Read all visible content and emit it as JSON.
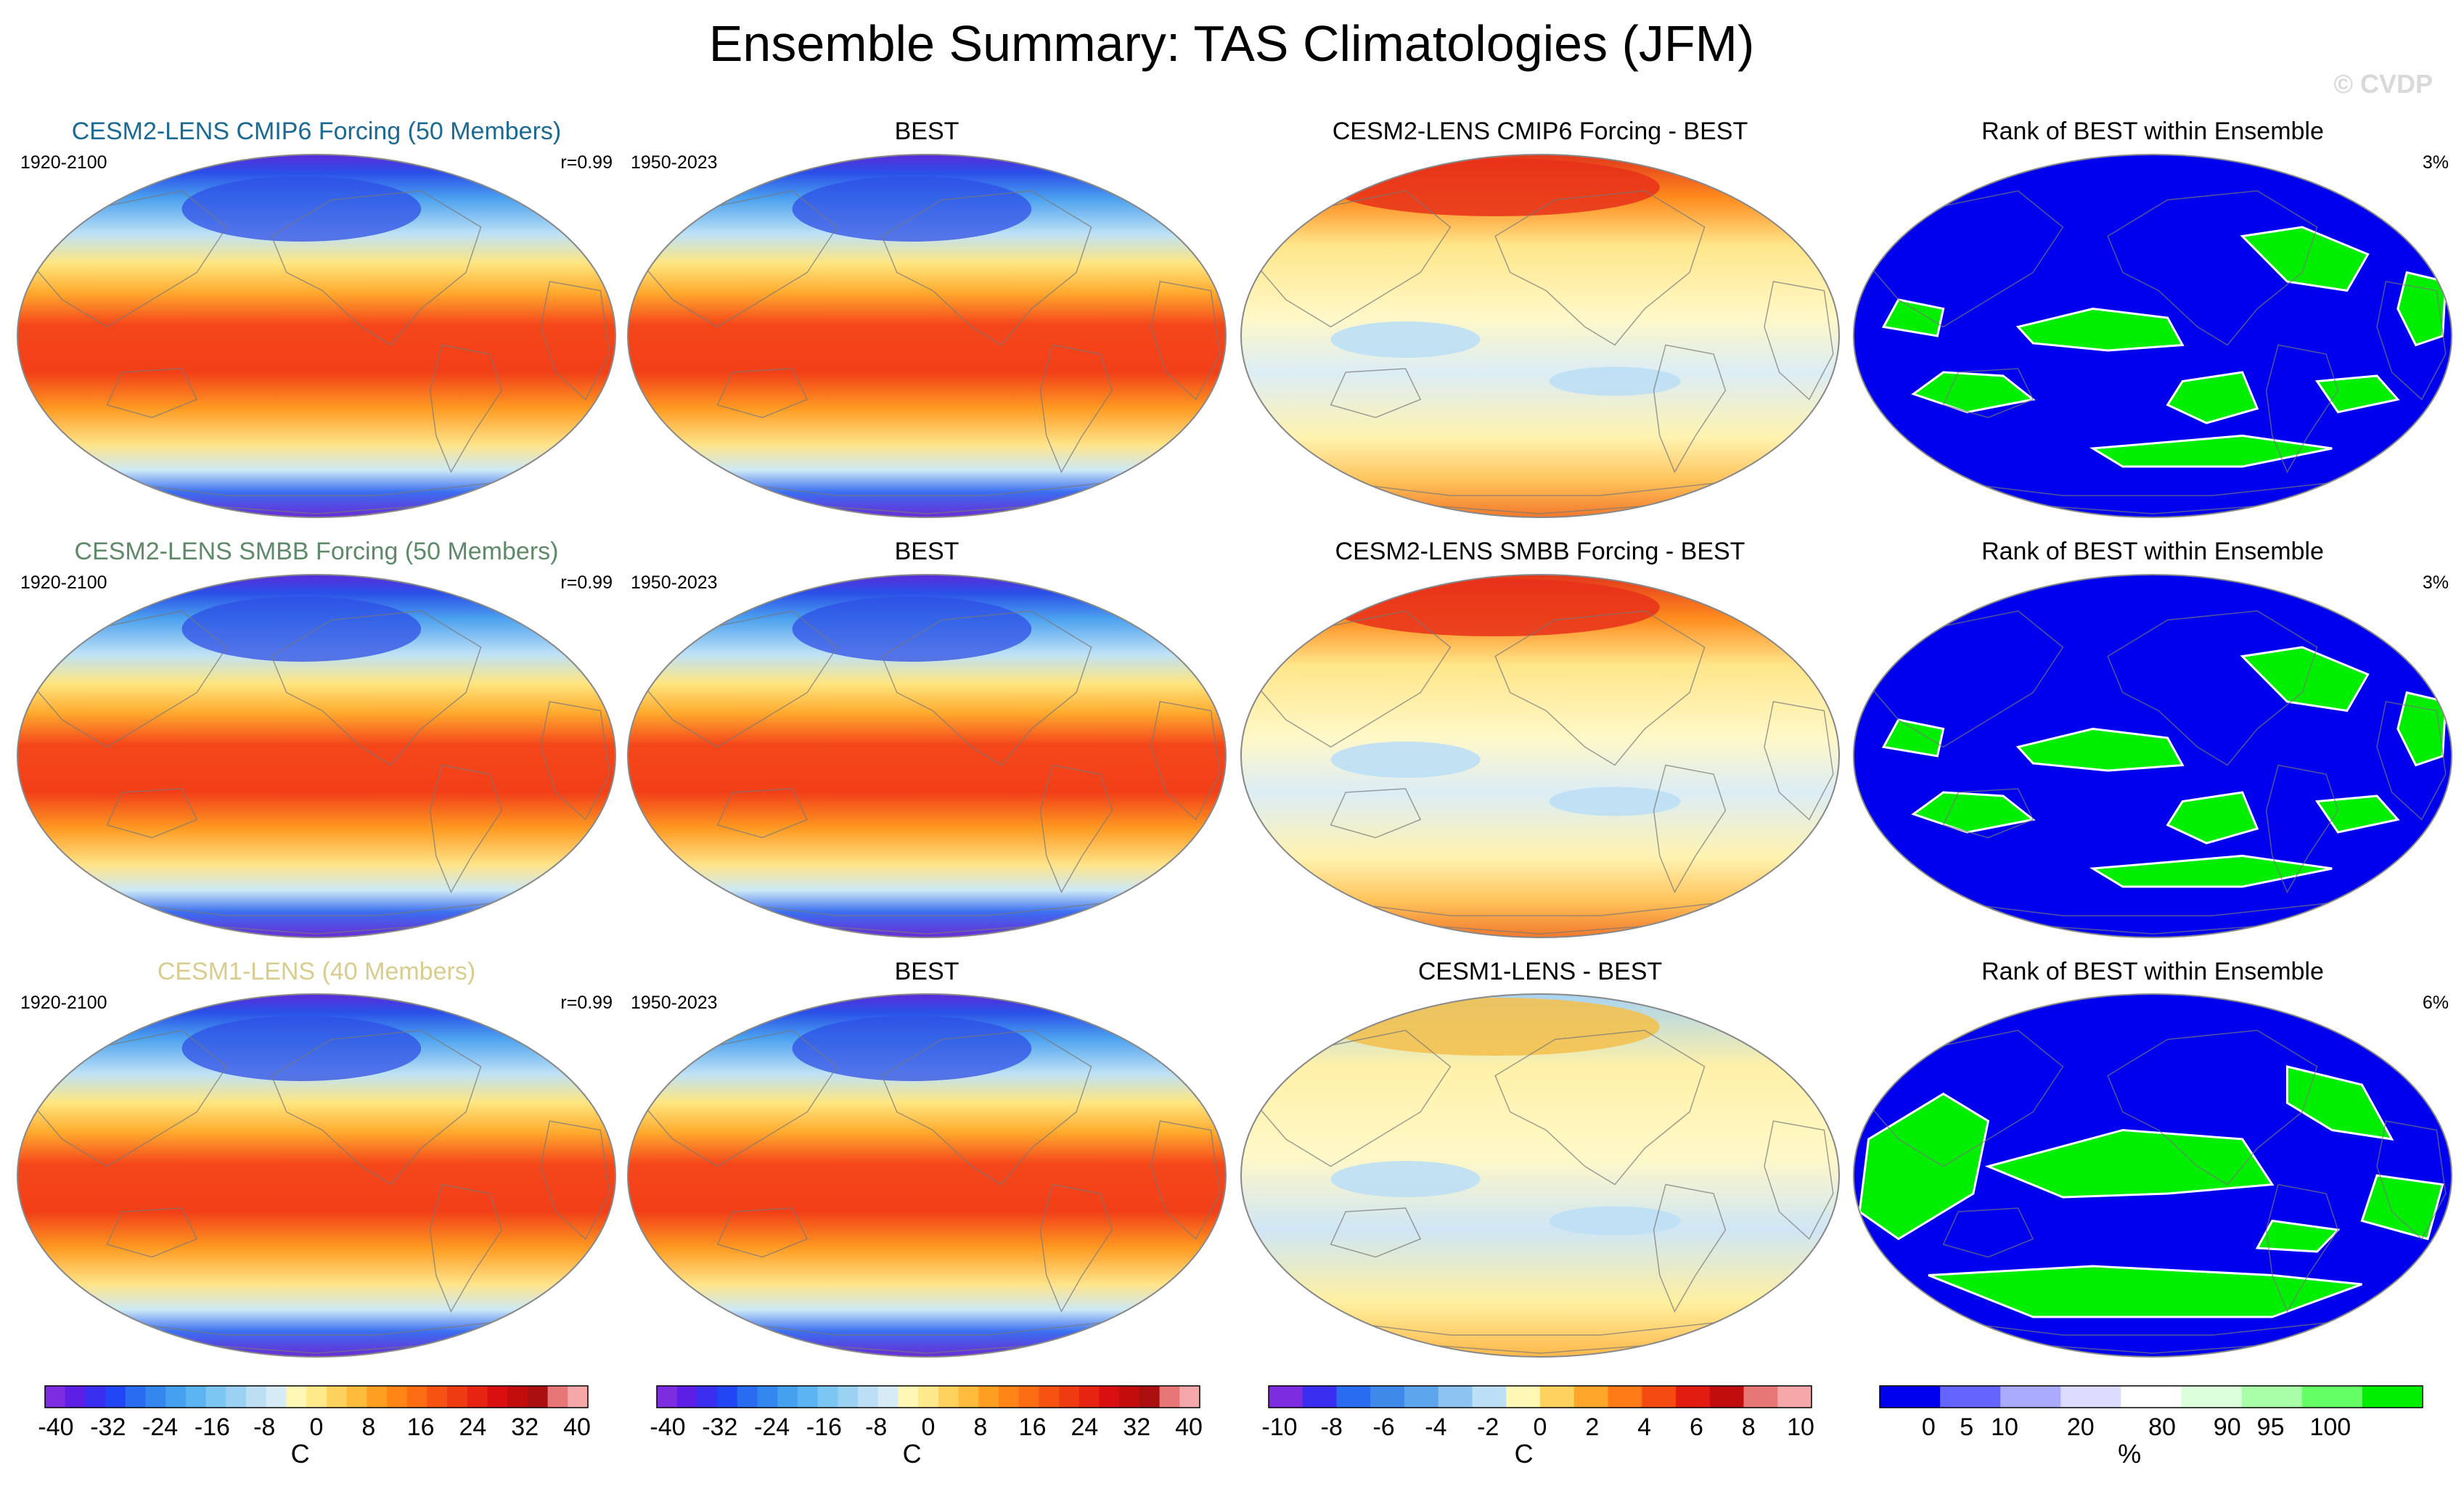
{
  "figure": {
    "title": "Ensemble Summary: TAS Climatologies (JFM)",
    "watermark": "© CVDP"
  },
  "colors": {
    "ens1_title": "#1a6a94",
    "ens2_title": "#5e8a6a",
    "ens3_title": "#d8cd8e",
    "map_border": "#888888",
    "ocean_land_line": "#777777"
  },
  "chart_data": [
    {
      "type": "heatmap",
      "panel": "r1c1",
      "title": "CESM2-LENS CMIP6 Forcing (50 Members)",
      "period": "1920-2100",
      "stat": "r=0.99",
      "field": "climatology",
      "units": "C"
    },
    {
      "type": "heatmap",
      "panel": "r1c2",
      "title": "BEST",
      "period": "1950-2023",
      "field": "climatology",
      "units": "C"
    },
    {
      "type": "heatmap",
      "panel": "r1c3",
      "title": "CESM2-LENS CMIP6 Forcing - BEST",
      "field": "difference",
      "units": "C"
    },
    {
      "type": "heatmap",
      "panel": "r1c4",
      "title": "Rank of BEST within Ensemble",
      "stat": "3%",
      "field": "rank",
      "units": "%"
    },
    {
      "type": "heatmap",
      "panel": "r2c1",
      "title": "CESM2-LENS SMBB Forcing (50 Members)",
      "period": "1920-2100",
      "stat": "r=0.99",
      "field": "climatology",
      "units": "C"
    },
    {
      "type": "heatmap",
      "panel": "r2c2",
      "title": "BEST",
      "period": "1950-2023",
      "field": "climatology",
      "units": "C"
    },
    {
      "type": "heatmap",
      "panel": "r2c3",
      "title": "CESM2-LENS SMBB Forcing - BEST",
      "field": "difference",
      "units": "C"
    },
    {
      "type": "heatmap",
      "panel": "r2c4",
      "title": "Rank of BEST within Ensemble",
      "stat": "3%",
      "field": "rank",
      "units": "%"
    },
    {
      "type": "heatmap",
      "panel": "r3c1",
      "title": "CESM1-LENS (40 Members)",
      "period": "1920-2100",
      "stat": "r=0.99",
      "field": "climatology",
      "units": "C"
    },
    {
      "type": "heatmap",
      "panel": "r3c2",
      "title": "BEST",
      "period": "1950-2023",
      "field": "climatology",
      "units": "C"
    },
    {
      "type": "heatmap",
      "panel": "r3c3",
      "title": "CESM1-LENS - BEST",
      "field": "difference",
      "units": "C"
    },
    {
      "type": "heatmap",
      "panel": "r3c4",
      "title": "Rank of BEST within Ensemble",
      "stat": "6%",
      "field": "rank",
      "units": "%"
    }
  ],
  "colorbars": [
    {
      "unit": "C",
      "tick_labels": [
        "-40",
        "-32",
        "-24",
        "-16",
        "-8",
        "0",
        "8",
        "16",
        "24",
        "32",
        "40"
      ],
      "colors": [
        "#7d2ce0",
        "#5d1ee6",
        "#3a2ff0",
        "#2147f5",
        "#2a6cf0",
        "#3387ee",
        "#46a0f0",
        "#5db4f2",
        "#7bc6f3",
        "#9bd2f4",
        "#bcdff5",
        "#d7ebf6",
        "#fff7b5",
        "#ffe98a",
        "#ffd25f",
        "#ffbc3c",
        "#ff9f22",
        "#ff8517",
        "#fc6c13",
        "#f65312",
        "#ef3b12",
        "#e62411",
        "#da1010",
        "#c30d0d",
        "#ab1010",
        "#e77676",
        "#f6a7a7"
      ]
    },
    {
      "unit": "C",
      "tick_labels": [
        "-40",
        "-32",
        "-24",
        "-16",
        "-8",
        "0",
        "8",
        "16",
        "24",
        "32",
        "40"
      ],
      "colors": [
        "#7d2ce0",
        "#5d1ee6",
        "#3a2ff0",
        "#2147f5",
        "#2a6cf0",
        "#3387ee",
        "#46a0f0",
        "#5db4f2",
        "#7bc6f3",
        "#9bd2f4",
        "#bcdff5",
        "#d7ebf6",
        "#fff7b5",
        "#ffe98a",
        "#ffd25f",
        "#ffbc3c",
        "#ff9f22",
        "#ff8517",
        "#fc6c13",
        "#f65312",
        "#ef3b12",
        "#e62411",
        "#da1010",
        "#c30d0d",
        "#ab1010",
        "#e77676",
        "#f6a7a7"
      ]
    },
    {
      "unit": "C",
      "tick_labels": [
        "-10",
        "-8",
        "-6",
        "-4",
        "-2",
        "0",
        "2",
        "4",
        "6",
        "8",
        "10"
      ],
      "colors": [
        "#7d2ce0",
        "#3a2ff0",
        "#2a6cf0",
        "#3f89ea",
        "#5da6ee",
        "#8cc3f0",
        "#bcdff5",
        "#fff7b5",
        "#ffd25f",
        "#ffa62b",
        "#ff7b17",
        "#f54b12",
        "#e21c10",
        "#c10d0d",
        "#e77676",
        "#f6a7a7"
      ]
    },
    {
      "unit": "%",
      "tick_labels": [
        "0",
        "5",
        "10",
        "20",
        "80",
        "90",
        "95",
        "100"
      ],
      "colors": [
        "#0000ee",
        "#6464ff",
        "#aaaaff",
        "#dcdcff",
        "#ffffff",
        "#dcffdc",
        "#a8ffa8",
        "#64ff64",
        "#00ee00"
      ]
    }
  ]
}
